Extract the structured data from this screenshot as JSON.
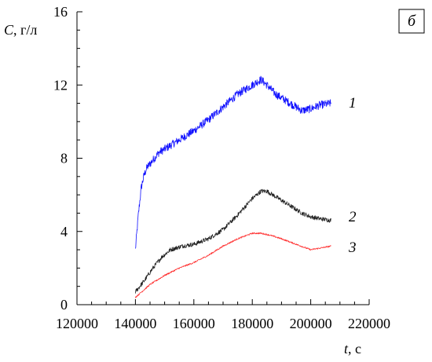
{
  "chart_data": {
    "type": "line",
    "panel_label": "б",
    "ylabel_var": "C",
    "ylabel_unit": ", г/л",
    "xlabel_var": "t",
    "xlabel_unit": ", с",
    "xlim": [
      120000,
      220000
    ],
    "ylim": [
      0,
      16
    ],
    "x_ticks": [
      120000,
      140000,
      160000,
      180000,
      200000,
      220000
    ],
    "y_ticks": [
      0,
      4,
      8,
      12,
      16
    ],
    "x_tick_labels": [
      "120000",
      "140000",
      "160000",
      "180000",
      "200000",
      "220000"
    ],
    "y_tick_labels": [
      "0",
      "4",
      "8",
      "12",
      "16"
    ],
    "grid": false,
    "series": [
      {
        "name": "1",
        "color": "#1010ff",
        "noise": 0.22,
        "x": [
          140000,
          141000,
          142000,
          143000,
          144000,
          146000,
          148000,
          150000,
          153000,
          156000,
          160000,
          165000,
          170000,
          175000,
          178000,
          181000,
          183000,
          185000,
          188000,
          191000,
          194000,
          197000,
          200000,
          203000,
          207000
        ],
        "values": [
          3.0,
          4.9,
          6.4,
          7.1,
          7.5,
          7.9,
          8.3,
          8.5,
          8.8,
          9.1,
          9.5,
          10.1,
          10.8,
          11.5,
          11.8,
          12.1,
          12.3,
          12.0,
          11.5,
          11.2,
          10.9,
          10.6,
          10.7,
          10.9,
          11.0
        ]
      },
      {
        "name": "2",
        "color": "#202020",
        "noise": 0.12,
        "x": [
          140000,
          143000,
          146000,
          149000,
          152000,
          156000,
          160000,
          165000,
          170000,
          175000,
          180000,
          183000,
          185000,
          188000,
          191000,
          194000,
          197000,
          200000,
          203000,
          207000
        ],
        "values": [
          0.7,
          1.3,
          2.0,
          2.6,
          3.0,
          3.2,
          3.3,
          3.6,
          4.1,
          4.9,
          5.8,
          6.2,
          6.2,
          5.9,
          5.6,
          5.3,
          5.0,
          4.8,
          4.7,
          4.6
        ]
      },
      {
        "name": "3",
        "color": "#ff3030",
        "noise": 0.04,
        "x": [
          140000,
          145000,
          150000,
          155000,
          160000,
          165000,
          170000,
          175000,
          180000,
          183000,
          186000,
          190000,
          195000,
          200000,
          207000
        ],
        "values": [
          0.4,
          1.1,
          1.6,
          2.0,
          2.3,
          2.7,
          3.2,
          3.6,
          3.9,
          3.9,
          3.8,
          3.6,
          3.3,
          3.0,
          3.2
        ]
      }
    ]
  }
}
